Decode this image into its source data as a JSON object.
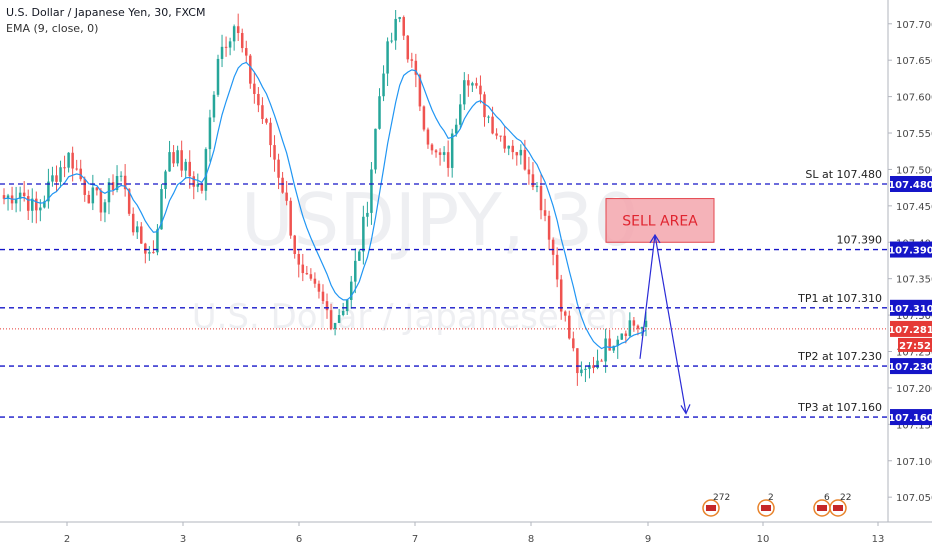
{
  "header": {
    "symbol_line": "U.S. Dollar / Japanese Yen, 30, FXCM",
    "indicator_line": "EMA (9, close, 0)"
  },
  "watermark": {
    "ticker": "USDJPY, 30",
    "name": "U.S. Dollar / Japanese Yen"
  },
  "chart_data": {
    "type": "candlestick",
    "xlabel": "",
    "ylabel": "",
    "ylim": [
      107.0,
      107.75
    ],
    "price_ticks": [
      "107.700",
      "107.650",
      "107.600",
      "107.550",
      "107.500",
      "107.450",
      "107.400",
      "107.350",
      "107.300",
      "107.250",
      "107.200",
      "107.150",
      "107.100",
      "107.050"
    ],
    "date_ticks": [
      "2",
      "3",
      "6",
      "7",
      "8",
      "9",
      "10",
      "13"
    ],
    "levels": [
      {
        "label": "SL at 107.480",
        "price": 107.48,
        "tag": "107.480"
      },
      {
        "label": "107.390",
        "price": 107.39,
        "tag": "107.390"
      },
      {
        "label": "TP1 at 107.310",
        "price": 107.31,
        "tag": "107.310"
      },
      {
        "label": "TP2 at 107.230",
        "price": 107.23,
        "tag": "107.230"
      },
      {
        "label": "TP3 at 107.160",
        "price": 107.16,
        "tag": "107.160"
      }
    ],
    "last_price": "107.281",
    "countdown": "27:52",
    "sell_area": {
      "label": "SELL AREA",
      "price_top": 107.46,
      "price_bottom": 107.4
    },
    "projection": [
      107.24,
      107.41,
      107.165
    ],
    "key_closes": [
      107.46,
      107.47,
      107.44,
      107.49,
      107.52,
      107.47,
      107.45,
      107.5,
      107.41,
      107.38,
      107.53,
      107.5,
      107.47,
      107.66,
      107.7,
      107.62,
      107.55,
      107.47,
      107.35,
      107.33,
      107.29,
      107.33,
      107.44,
      107.64,
      107.71,
      107.62,
      107.52,
      107.51,
      107.64,
      107.59,
      107.55,
      107.53,
      107.5,
      107.43,
      107.3,
      107.21,
      107.24,
      107.27,
      107.29,
      107.28
    ],
    "events": [
      {
        "label": "272",
        "tick": "9"
      },
      {
        "label": "2",
        "tick": "10"
      },
      {
        "label": "6",
        "tick": "13"
      },
      {
        "label": "22",
        "tick": "13"
      }
    ],
    "colors": {
      "up": "#26a69a",
      "down": "#ef5350",
      "ema": "#2196f3",
      "level": "#1515c8",
      "last": "#e53935",
      "sell_fill": "#f4a6ad",
      "sell_text": "#e0242f"
    }
  }
}
